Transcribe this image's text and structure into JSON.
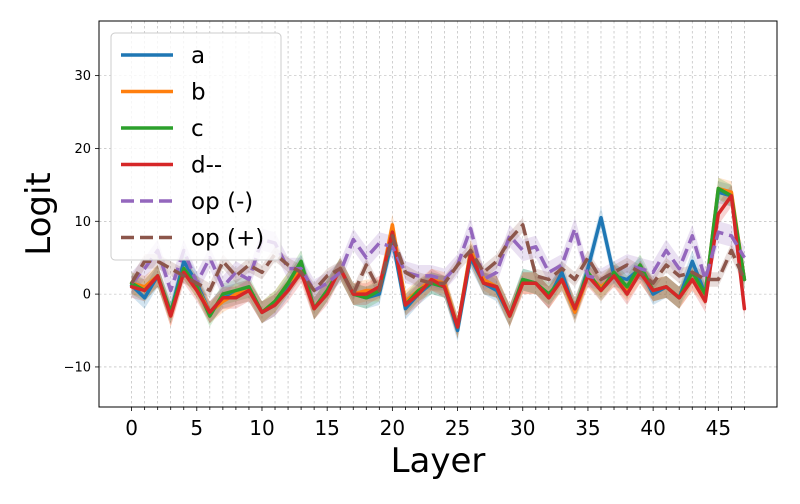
{
  "chart_data": {
    "type": "line",
    "title": "",
    "xlabel": "Layer",
    "ylabel": "Logit",
    "xlim": [
      -2.5,
      49.5
    ],
    "ylim": [
      -15.5,
      37.5
    ],
    "x_major_ticks": [
      0,
      5,
      10,
      15,
      20,
      25,
      30,
      35,
      40,
      45
    ],
    "x_major_tick_labels": [
      "0",
      "5",
      "10",
      "15",
      "20",
      "25",
      "30",
      "35",
      "40",
      "45"
    ],
    "y_ticks": [
      -10,
      0,
      10,
      20,
      30
    ],
    "y_tick_labels": [
      "−10",
      "0",
      "10",
      "20",
      "30"
    ],
    "grid": "on (dashed, every layer on x)",
    "legend_position": "top-left",
    "x": [
      0,
      1,
      2,
      3,
      4,
      5,
      6,
      7,
      8,
      9,
      10,
      11,
      12,
      13,
      14,
      15,
      16,
      17,
      18,
      19,
      20,
      21,
      22,
      23,
      24,
      25,
      26,
      27,
      28,
      29,
      30,
      31,
      32,
      33,
      34,
      35,
      36,
      37,
      38,
      39,
      40,
      41,
      42,
      43,
      44,
      45,
      46,
      47
    ],
    "series": [
      {
        "name": "a",
        "color": "#1f77b4",
        "dash": "solid",
        "values": [
          1.2,
          -0.5,
          2.5,
          -2.5,
          4.5,
          1.5,
          -2.5,
          -0.5,
          0.0,
          0.5,
          -2.5,
          -1.5,
          1.0,
          4.0,
          -2.0,
          0.5,
          3.5,
          0.0,
          -0.5,
          0.0,
          7.5,
          -2.0,
          0.0,
          1.5,
          1.0,
          -5.0,
          5.0,
          1.5,
          0.5,
          -3.0,
          2.0,
          1.5,
          -0.5,
          3.0,
          -2.5,
          3.5,
          10.5,
          2.5,
          2.0,
          3.5,
          0.0,
          1.0,
          -0.5,
          4.5,
          0.0,
          14.0,
          13.5,
          2.0
        ],
        "band": 1.5
      },
      {
        "name": "b",
        "color": "#ff7f0e",
        "dash": "solid",
        "values": [
          1.5,
          1.0,
          2.5,
          -3.0,
          3.5,
          1.0,
          -2.5,
          -1.0,
          0.0,
          0.5,
          -2.5,
          -1.0,
          1.5,
          3.5,
          -2.0,
          0.5,
          3.5,
          0.0,
          0.5,
          0.5,
          9.5,
          -1.0,
          0.5,
          2.0,
          1.5,
          -4.5,
          6.0,
          2.0,
          1.0,
          -3.0,
          1.5,
          1.5,
          -0.5,
          2.0,
          -2.5,
          2.5,
          1.0,
          2.5,
          0.5,
          3.0,
          0.5,
          1.0,
          -0.5,
          2.0,
          0.0,
          14.5,
          14.0,
          2.0
        ],
        "band": 1.5
      },
      {
        "name": "c",
        "color": "#2ca02c",
        "dash": "solid",
        "values": [
          1.5,
          0.5,
          2.5,
          -2.5,
          3.5,
          1.0,
          -3.0,
          0.0,
          0.5,
          1.0,
          -2.5,
          -1.0,
          1.5,
          4.5,
          -2.0,
          0.5,
          3.5,
          0.0,
          -0.5,
          0.5,
          8.5,
          -1.5,
          0.5,
          1.5,
          1.0,
          -4.5,
          5.5,
          1.5,
          1.0,
          -3.0,
          2.0,
          1.5,
          0.0,
          2.0,
          -2.0,
          3.0,
          0.5,
          3.0,
          1.0,
          4.0,
          0.5,
          1.0,
          -0.5,
          3.0,
          0.0,
          14.5,
          13.5,
          2.0
        ],
        "band": 1.5
      },
      {
        "name": "d--",
        "color": "#d62728",
        "dash": "solid",
        "values": [
          1.0,
          0.5,
          2.5,
          -3.0,
          3.0,
          0.5,
          -2.5,
          -0.5,
          -0.5,
          0.5,
          -2.5,
          -1.5,
          0.5,
          3.0,
          -2.0,
          0.0,
          3.5,
          0.0,
          0.0,
          1.0,
          8.5,
          -1.5,
          0.0,
          2.0,
          1.0,
          -4.5,
          5.5,
          1.5,
          1.0,
          -3.0,
          1.5,
          1.5,
          -0.5,
          2.0,
          -2.0,
          2.5,
          0.5,
          2.5,
          0.0,
          3.0,
          0.5,
          1.0,
          -0.5,
          2.0,
          -1.0,
          11.0,
          13.5,
          -2.0
        ],
        "band": 1.5
      },
      {
        "name": "op (-)",
        "color": "#9467bd",
        "dash": "dashed",
        "values": [
          1.5,
          3.5,
          6.0,
          0.5,
          6.0,
          1.5,
          5.0,
          1.0,
          3.0,
          2.0,
          7.5,
          7.0,
          3.5,
          3.5,
          0.5,
          1.5,
          3.0,
          7.5,
          5.0,
          7.0,
          6.5,
          3.0,
          2.5,
          2.5,
          2.0,
          4.0,
          9.0,
          2.0,
          3.0,
          8.0,
          6.0,
          6.5,
          3.0,
          4.0,
          9.0,
          2.5,
          2.0,
          3.0,
          4.0,
          3.5,
          3.0,
          6.0,
          3.5,
          8.0,
          2.0,
          8.5,
          8.0,
          5.0
        ],
        "band": 1.5
      },
      {
        "name": "op (+)",
        "color": "#8c564b",
        "dash": "dashed",
        "values": [
          1.5,
          4.5,
          4.5,
          3.5,
          2.5,
          1.5,
          0.5,
          4.5,
          2.5,
          4.0,
          3.0,
          5.5,
          4.0,
          3.0,
          0.5,
          2.5,
          3.5,
          0.0,
          4.0,
          0.5,
          8.0,
          3.0,
          2.0,
          1.5,
          1.5,
          4.0,
          6.0,
          3.0,
          4.5,
          7.5,
          9.5,
          2.5,
          2.0,
          3.5,
          2.0,
          5.0,
          2.0,
          3.0,
          4.0,
          3.0,
          1.5,
          4.0,
          2.5,
          3.0,
          2.0,
          2.0,
          6.0,
          2.0
        ],
        "band": 1.0
      }
    ]
  }
}
